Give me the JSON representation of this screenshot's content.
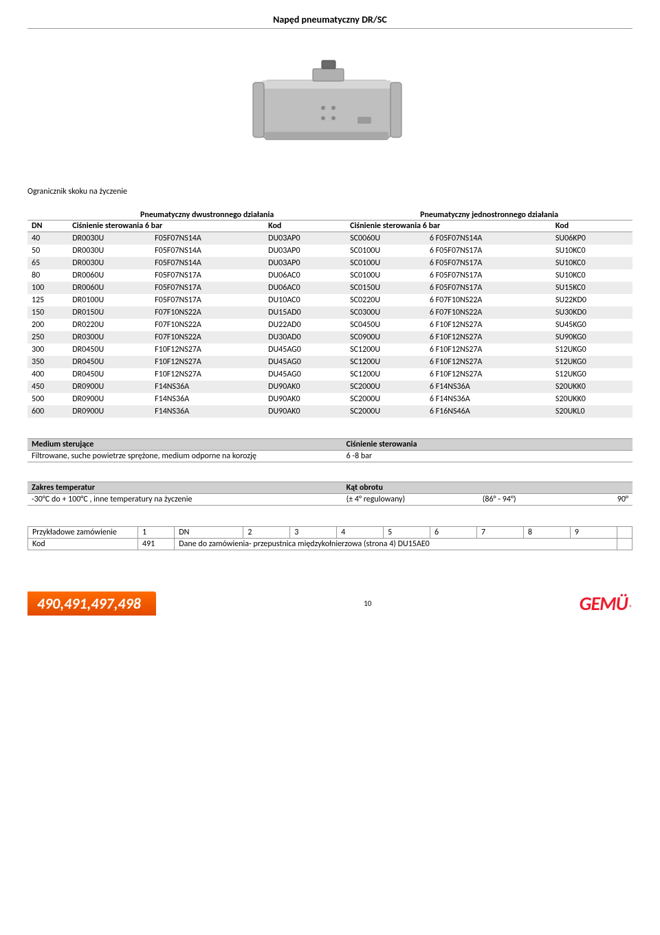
{
  "title": "Napęd pneumatyczny DR/SC",
  "subtitle": "Ogranicznik skoku na życzenie",
  "spec_table": {
    "top_headers": {
      "left": "Pneumatyczny dwustronnego działania",
      "right": "Pneumatyczny jednostronnego działania"
    },
    "sub_headers": [
      "DN",
      "Ciśnienie sterowania 6 bar",
      "Kod",
      "Ciśnienie sterowania 6 bar",
      "Kod"
    ],
    "rows": [
      [
        "40",
        "DR0030U",
        "F05F07NS14A",
        "DU03AP0",
        "SC0060U",
        "6 F05F07NS14A",
        "SU06KP0"
      ],
      [
        "50",
        "DR0030U",
        "F05F07NS14A",
        "DU03AP0",
        "SC0100U",
        "6 F05F07NS17A",
        "SU10KC0"
      ],
      [
        "65",
        "DR0030U",
        "F05F07NS14A",
        "DU03AP0",
        "SC0100U",
        "6 F05F07NS17A",
        "SU10KC0"
      ],
      [
        "80",
        "DR0060U",
        "F05F07NS17A",
        "DU06AC0",
        "SC0100U",
        "6 F05F07NS17A",
        "SU10KC0"
      ],
      [
        "100",
        "DR0060U",
        "F05F07NS17A",
        "DU06AC0",
        "SC0150U",
        "6 F05F07NS17A",
        "SU15KC0"
      ],
      [
        "125",
        "DR0100U",
        "F05F07NS17A",
        "DU10AC0",
        "SC0220U",
        "6 F07F10NS22A",
        "SU22KD0"
      ],
      [
        "150",
        "DR0150U",
        "F07F10NS22A",
        "DU15AD0",
        "SC0300U",
        "6 F07F10NS22A",
        "SU30KD0"
      ],
      [
        "200",
        "DR0220U",
        "F07F10NS22A",
        "DU22AD0",
        "SC0450U",
        "6 F10F12NS27A",
        "SU45KG0"
      ],
      [
        "250",
        "DR0300U",
        "F07F10NS22A",
        "DU30AD0",
        "SC0900U",
        "6 F10F12NS27A",
        "SU90KG0"
      ],
      [
        "300",
        "DR0450U",
        "F10F12NS27A",
        "DU45AG0",
        "SC1200U",
        "6 F10F12NS27A",
        "S12UKG0"
      ],
      [
        "350",
        "DR0450U",
        "F10F12NS27A",
        "DU45AG0",
        "SC1200U",
        "6 F10F12NS27A",
        "S12UKG0"
      ],
      [
        "400",
        "DR0450U",
        "F10F12NS27A",
        "DU45AG0",
        "SC1200U",
        "6 F10F12NS27A",
        "S12UKG0"
      ],
      [
        "450",
        "DR0900U",
        "F14NS36A",
        "DU90AK0",
        "SC2000U",
        "6 F14NS36A",
        "S20UKK0"
      ],
      [
        "500",
        "DR0900U",
        "F14NS36A",
        "DU90AK0",
        "SC2000U",
        "6 F14NS36A",
        "S20UKK0"
      ],
      [
        "600",
        "DR0900U",
        "F14NS36A",
        "DU90AK0",
        "SC2000U",
        "6 F16NS46A",
        "S20UKL0"
      ]
    ],
    "zebra_bg": "#ececec",
    "header_border": "#999999",
    "fontsize": 12
  },
  "medium_block": {
    "left_header": "Medium sterujące",
    "left_value": "Filtrowane, suche powietrze sprężone, medium odporne na korozję",
    "right_header": "Ciśnienie sterowania",
    "right_value": "6 -8 bar",
    "header_bg": "#d0d0d0"
  },
  "temp_block": {
    "left_header": "Zakres temperatur",
    "left_value": "-30°C  do + 100°C , inne temperatury na życzenie",
    "right_header": "Kąt obrotu",
    "right_v1": "(± 4° regulowany)",
    "right_v2": "(86° - 94°)",
    "right_v3": "90°",
    "header_bg": "#d0d0d0"
  },
  "order_table": {
    "row1_label": "Przykładowe zamówienie",
    "row1_cells": [
      "1",
      "DN",
      "2",
      "3",
      "4",
      "5",
      "6",
      "7",
      "8",
      "9",
      ""
    ],
    "row2_label": "Kod",
    "row2_code": "491",
    "row2_text": "Dane do zamówienia- przepustnica międzykołnierzowa (strona 4) DU15AE0"
  },
  "footer": {
    "badge": "490,491,497,498",
    "badge_bg": "#ff6a00",
    "pagenum": "10",
    "logo_text": "GEMÜ",
    "logo_color": "#eb1c2d"
  },
  "image": {
    "body_fill": "#bfbfbf",
    "body_stroke": "#7a7a7a",
    "shadow": "#9a9a9a"
  }
}
